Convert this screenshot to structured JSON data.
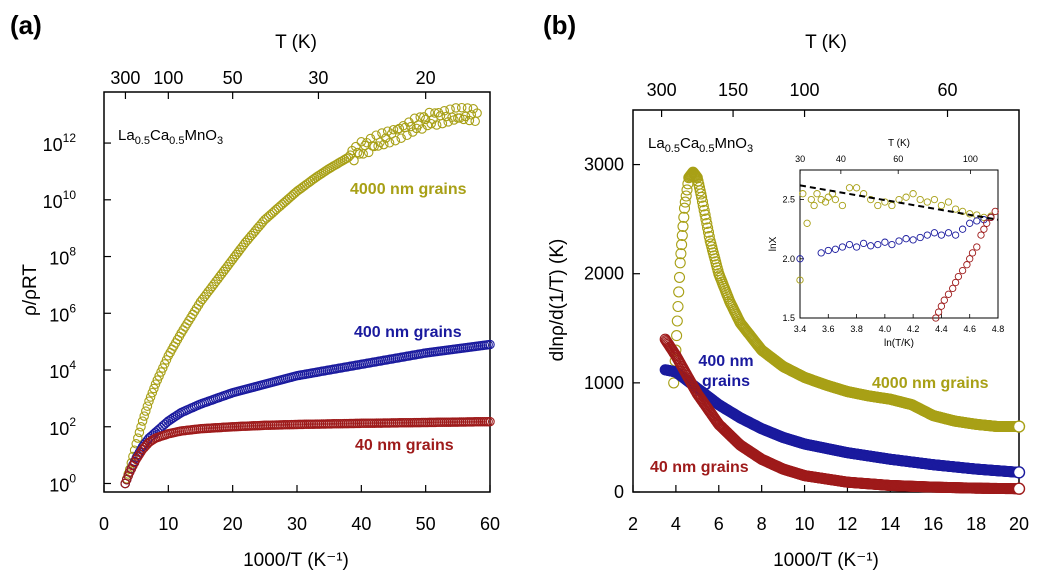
{
  "chart_data": [
    {
      "panel": "(a)",
      "type": "scatter",
      "compound": "La0.5Ca0.5MnO3",
      "compound_parts": [
        "La",
        "0.5",
        "Ca",
        "0.5",
        "MnO",
        "3"
      ],
      "xlabel": "1000/T (K⁻¹)",
      "ylabel": "ρ/ρRT",
      "top_axis_label": "T (K)",
      "log_y": true,
      "xlim": [
        0,
        60
      ],
      "ylim_log10": [
        -0.3,
        13.8
      ],
      "x_ticks": [
        0,
        10,
        20,
        30,
        40,
        50,
        60
      ],
      "y_tick_exponents": [
        0,
        2,
        4,
        6,
        8,
        10,
        12
      ],
      "top_ticks": {
        "values": [
          300,
          100,
          50,
          30,
          20
        ],
        "labels": [
          "300",
          "100",
          "50",
          "30",
          "20"
        ]
      },
      "series": [
        {
          "name": "4000 nm grains",
          "color": "#a8a016",
          "x": [
            3.3,
            4,
            5,
            6,
            7,
            8,
            10,
            12,
            15,
            18,
            20,
            22,
            25,
            28,
            30,
            33,
            35,
            38,
            40,
            42,
            45,
            48,
            50,
            52,
            55,
            58
          ],
          "log10_y": [
            0,
            0.5,
            1.4,
            2.2,
            2.9,
            3.5,
            4.5,
            5.3,
            6.4,
            7.3,
            7.9,
            8.5,
            9.3,
            9.9,
            10.3,
            10.8,
            11.1,
            11.5,
            11.8,
            12.0,
            12.3,
            12.6,
            12.8,
            12.9,
            13.0,
            13.0
          ]
        },
        {
          "name": "400 nm grains",
          "color": "#1a1a9e",
          "x": [
            3.3,
            4,
            5,
            6,
            7,
            8,
            10,
            12,
            15,
            20,
            25,
            30,
            35,
            40,
            45,
            50,
            55,
            60
          ],
          "log10_y": [
            0,
            0.4,
            0.9,
            1.3,
            1.6,
            1.8,
            2.2,
            2.5,
            2.8,
            3.2,
            3.5,
            3.8,
            4.0,
            4.2,
            4.4,
            4.6,
            4.75,
            4.9
          ]
        },
        {
          "name": "40 nm grains",
          "color": "#9e1a1a",
          "x": [
            3.3,
            4,
            5,
            6,
            7,
            8,
            10,
            12,
            15,
            20,
            25,
            30,
            40,
            50,
            60
          ],
          "log10_y": [
            0,
            0.4,
            0.85,
            1.2,
            1.45,
            1.6,
            1.75,
            1.85,
            1.93,
            2.0,
            2.05,
            2.08,
            2.12,
            2.15,
            2.18
          ]
        }
      ]
    },
    {
      "panel": "(b)",
      "type": "scatter",
      "compound": "La0.5Ca0.5MnO3",
      "compound_parts": [
        "La",
        "0.5",
        "Ca",
        "0.5",
        "MnO",
        "3"
      ],
      "xlabel": "1000/T (K⁻¹)",
      "ylabel": "dlnρ/d(1/T) (K)",
      "top_axis_label": "T (K)",
      "xlim": [
        2,
        20
      ],
      "ylim": [
        0,
        3500
      ],
      "x_ticks": [
        2,
        4,
        6,
        8,
        10,
        12,
        14,
        16,
        18,
        20
      ],
      "y_ticks": [
        0,
        1000,
        2000,
        3000
      ],
      "top_ticks": {
        "values": [
          300,
          150,
          100,
          60
        ],
        "labels": [
          "300",
          "150",
          "100",
          "60"
        ]
      },
      "series": [
        {
          "name": "4000 nm grains",
          "color": "#a8a016",
          "x": [
            3.9,
            4.0,
            4.1,
            4.2,
            4.4,
            4.6,
            4.8,
            5.0,
            5.2,
            5.6,
            6.0,
            6.5,
            7.0,
            8.0,
            9.0,
            10.0,
            11.0,
            12.0,
            13.0,
            14.0,
            15.0,
            16.0,
            17.0,
            18.0,
            19.0,
            20.0
          ],
          "y": [
            1000,
            1300,
            1700,
            2100,
            2600,
            2880,
            2930,
            2880,
            2700,
            2300,
            2000,
            1750,
            1550,
            1300,
            1150,
            1050,
            980,
            920,
            880,
            850,
            800,
            700,
            650,
            620,
            600,
            600
          ]
        },
        {
          "name": "400 nm grains",
          "color": "#1a1a9e",
          "x": [
            3.5,
            4,
            5,
            6,
            7,
            8,
            9,
            10,
            12,
            14,
            16,
            18,
            20
          ],
          "y": [
            1120,
            1100,
            950,
            800,
            680,
            580,
            500,
            440,
            360,
            300,
            250,
            210,
            180
          ]
        },
        {
          "name": "40 nm grains",
          "color": "#9e1a1a",
          "x": [
            3.5,
            4,
            5,
            6,
            7,
            8,
            9,
            10,
            12,
            14,
            16,
            18,
            20
          ],
          "y": [
            1400,
            1250,
            900,
            620,
            430,
            300,
            210,
            150,
            90,
            60,
            45,
            35,
            30
          ]
        }
      ]
    },
    {
      "panel": "inset",
      "type": "scatter",
      "xlabel": "ln(T/K)",
      "ylabel": "lnX",
      "top_axis_label": "T (K)",
      "xlim": [
        3.4,
        4.8
      ],
      "ylim": [
        1.5,
        2.75
      ],
      "x_ticks": [
        3.4,
        3.6,
        3.8,
        4.0,
        4.2,
        4.4,
        4.6,
        4.8
      ],
      "y_ticks": [
        1.5,
        2.0,
        2.5
      ],
      "top_ticks": {
        "values": [
          30,
          40,
          60,
          100
        ],
        "labels": [
          "30",
          "40",
          "60",
          "100"
        ]
      },
      "fit_line": {
        "x": [
          3.4,
          4.8
        ],
        "y": [
          2.62,
          2.33
        ],
        "style": "dashed"
      },
      "series": [
        {
          "name": "4000 nm grains",
          "color": "#a8a016",
          "x": [
            3.4,
            3.42,
            3.45,
            3.48,
            3.5,
            3.52,
            3.55,
            3.58,
            3.6,
            3.63,
            3.65,
            3.7,
            3.75,
            3.8,
            3.85,
            3.9,
            3.95,
            4.0,
            4.05,
            4.1,
            4.15,
            4.2,
            4.25,
            4.3,
            4.35,
            4.4,
            4.45,
            4.5,
            4.55,
            4.6,
            4.65,
            4.7,
            4.75
          ],
          "y": [
            1.82,
            2.55,
            2.3,
            2.5,
            2.45,
            2.55,
            2.5,
            2.48,
            2.52,
            2.55,
            2.5,
            2.45,
            2.6,
            2.6,
            2.55,
            2.5,
            2.45,
            2.48,
            2.45,
            2.5,
            2.52,
            2.55,
            2.5,
            2.48,
            2.5,
            2.45,
            2.48,
            2.42,
            2.4,
            2.38,
            2.37,
            2.35,
            2.36
          ]
        },
        {
          "name": "400 nm grains",
          "color": "#1a1a9e",
          "x": [
            3.4,
            3.55,
            3.6,
            3.65,
            3.7,
            3.75,
            3.8,
            3.85,
            3.9,
            3.95,
            4.0,
            4.05,
            4.1,
            4.15,
            4.2,
            4.25,
            4.3,
            4.35,
            4.4,
            4.45,
            4.5,
            4.55,
            4.6,
            4.65,
            4.7,
            4.75
          ],
          "y": [
            2.0,
            2.05,
            2.07,
            2.08,
            2.1,
            2.12,
            2.1,
            2.13,
            2.11,
            2.12,
            2.14,
            2.12,
            2.15,
            2.17,
            2.16,
            2.18,
            2.2,
            2.22,
            2.2,
            2.22,
            2.2,
            2.25,
            2.3,
            2.32,
            2.33,
            2.35
          ]
        },
        {
          "name": "40 nm grains",
          "color": "#9e1a1a",
          "x": [
            4.36,
            4.38,
            4.4,
            4.42,
            4.45,
            4.48,
            4.5,
            4.52,
            4.55,
            4.58,
            4.6,
            4.62,
            4.65,
            4.68,
            4.7,
            4.72,
            4.75,
            4.78
          ],
          "y": [
            1.5,
            1.55,
            1.6,
            1.65,
            1.7,
            1.75,
            1.8,
            1.85,
            1.9,
            1.95,
            2.0,
            2.05,
            2.1,
            2.2,
            2.25,
            2.3,
            2.35,
            2.4
          ]
        }
      ]
    }
  ]
}
